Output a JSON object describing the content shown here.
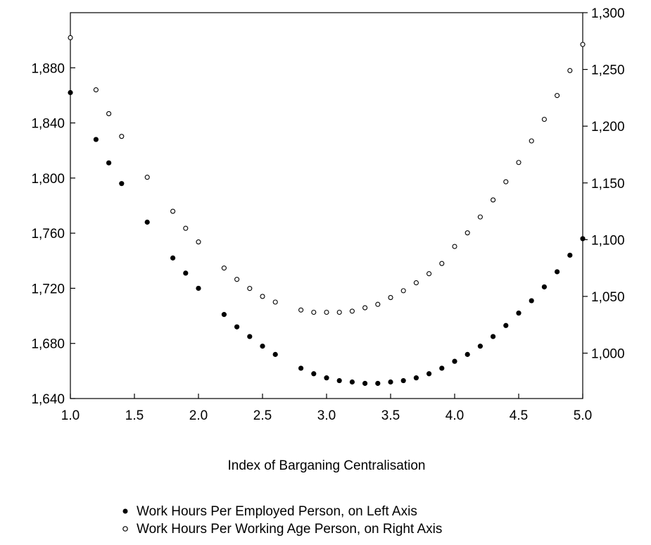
{
  "chart_data": {
    "type": "scatter",
    "title": "",
    "xlabel": "Index of Barganing Centralisation",
    "xlim": [
      1.0,
      5.0
    ],
    "x_ticks": [
      "1.0",
      "1.5",
      "2.0",
      "2.5",
      "3.0",
      "3.5",
      "4.0",
      "4.5",
      "5.0"
    ],
    "left_axis": {
      "ylim": [
        1640,
        1920
      ],
      "ticks": [
        "1,640",
        "1,680",
        "1,720",
        "1,760",
        "1,800",
        "1,840",
        "1,880"
      ]
    },
    "right_axis": {
      "ylim": [
        960,
        1300
      ],
      "ticks": [
        "1,000",
        "1,050",
        "1,100",
        "1,150",
        "1,200",
        "1,250",
        "1,300"
      ]
    },
    "legend_position": "bottom",
    "series": [
      {
        "name": "Work Hours Per Employed Person, on Left Axis",
        "axis": "left",
        "marker": "filled-circle",
        "x": [
          1.0,
          1.2,
          1.3,
          1.4,
          1.6,
          1.8,
          1.9,
          2.0,
          2.2,
          2.3,
          2.4,
          2.5,
          2.6,
          2.8,
          2.9,
          3.0,
          3.1,
          3.2,
          3.3,
          3.4,
          3.5,
          3.6,
          3.7,
          3.8,
          3.9,
          4.0,
          4.1,
          4.2,
          4.3,
          4.4,
          4.5,
          4.6,
          4.7,
          4.8,
          4.9,
          5.0
        ],
        "y": [
          1862,
          1828,
          1811,
          1796,
          1768,
          1742,
          1731,
          1720,
          1701,
          1692,
          1685,
          1678,
          1672,
          1662,
          1658,
          1655,
          1653,
          1652,
          1651,
          1651,
          1652,
          1653,
          1655,
          1658,
          1662,
          1667,
          1672,
          1678,
          1685,
          1693,
          1702,
          1711,
          1721,
          1732,
          1744,
          1756
        ]
      },
      {
        "name": "Work Hours Per Working Age Person, on Right Axis",
        "axis": "right",
        "marker": "open-circle",
        "x": [
          1.0,
          1.2,
          1.3,
          1.4,
          1.6,
          1.8,
          1.9,
          2.0,
          2.2,
          2.3,
          2.4,
          2.5,
          2.6,
          2.8,
          2.9,
          3.0,
          3.1,
          3.2,
          3.3,
          3.4,
          3.5,
          3.6,
          3.7,
          3.8,
          3.9,
          4.0,
          4.1,
          4.2,
          4.3,
          4.4,
          4.5,
          4.6,
          4.7,
          4.8,
          4.9,
          5.0
        ],
        "y": [
          1278,
          1232,
          1211,
          1191,
          1155,
          1125,
          1110,
          1098,
          1075,
          1065,
          1057,
          1050,
          1045,
          1038,
          1036,
          1036,
          1036,
          1037,
          1040,
          1043,
          1049,
          1055,
          1062,
          1070,
          1079,
          1094,
          1106,
          1120,
          1135,
          1151,
          1168,
          1187,
          1206,
          1227,
          1249,
          1272
        ]
      }
    ]
  }
}
